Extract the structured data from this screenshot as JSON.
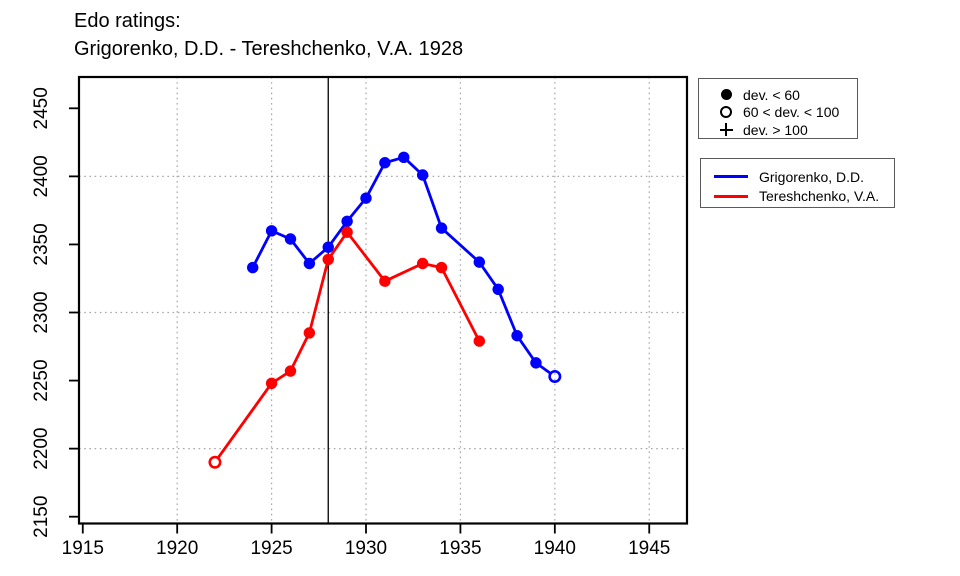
{
  "chart_data": {
    "type": "line",
    "title": "Edo ratings:",
    "subtitle": "Grigorenko, D.D. - Tereshchenko, V.A. 1928",
    "xlabel": "",
    "ylabel": "",
    "xlim": [
      1914.8,
      1947.0
    ],
    "ylim": [
      2145,
      2473
    ],
    "x_ticks": [
      1915,
      1920,
      1925,
      1930,
      1935,
      1940,
      1945
    ],
    "y_ticks": [
      2150,
      2200,
      2250,
      2300,
      2350,
      2400,
      2450
    ],
    "x_gridlines": [
      1920,
      1925,
      1930,
      1935,
      1940,
      1945
    ],
    "y_gridlines": [
      2200,
      2300,
      2400
    ],
    "event_vline_x": 1928,
    "grid": true,
    "legend_position": "top-right-outside",
    "colors": {
      "grid": "#a8a8a8",
      "axis": "#000000",
      "vline": "#000000"
    },
    "series": [
      {
        "name": "Grigorenko, D.D.",
        "color": "#0000ff",
        "points": [
          {
            "x": 1924,
            "y": 2333,
            "marker": "filled"
          },
          {
            "x": 1925,
            "y": 2360,
            "marker": "filled"
          },
          {
            "x": 1926,
            "y": 2354,
            "marker": "filled"
          },
          {
            "x": 1927,
            "y": 2336,
            "marker": "filled"
          },
          {
            "x": 1928,
            "y": 2348,
            "marker": "filled"
          },
          {
            "x": 1929,
            "y": 2367,
            "marker": "filled"
          },
          {
            "x": 1930,
            "y": 2384,
            "marker": "filled"
          },
          {
            "x": 1931,
            "y": 2410,
            "marker": "filled"
          },
          {
            "x": 1932,
            "y": 2414,
            "marker": "filled"
          },
          {
            "x": 1933,
            "y": 2401,
            "marker": "filled"
          },
          {
            "x": 1934,
            "y": 2362,
            "marker": "filled"
          },
          {
            "x": 1936,
            "y": 2337,
            "marker": "filled"
          },
          {
            "x": 1937,
            "y": 2317,
            "marker": "filled"
          },
          {
            "x": 1938,
            "y": 2283,
            "marker": "filled"
          },
          {
            "x": 1939,
            "y": 2263,
            "marker": "filled"
          },
          {
            "x": 1940,
            "y": 2253,
            "marker": "open"
          }
        ]
      },
      {
        "name": "Tereshchenko, V.A.",
        "color": "#ff0000",
        "points": [
          {
            "x": 1922,
            "y": 2190,
            "marker": "open"
          },
          {
            "x": 1925,
            "y": 2248,
            "marker": "filled"
          },
          {
            "x": 1926,
            "y": 2257,
            "marker": "filled"
          },
          {
            "x": 1927,
            "y": 2285,
            "marker": "filled"
          },
          {
            "x": 1928,
            "y": 2339,
            "marker": "filled"
          },
          {
            "x": 1929,
            "y": 2359,
            "marker": "filled"
          },
          {
            "x": 1931,
            "y": 2323,
            "marker": "filled"
          },
          {
            "x": 1933,
            "y": 2336,
            "marker": "filled"
          },
          {
            "x": 1934,
            "y": 2333,
            "marker": "filled"
          },
          {
            "x": 1936,
            "y": 2279,
            "marker": "filled"
          }
        ]
      }
    ]
  },
  "marker_legend": {
    "items": [
      {
        "symbol": "filled-circle",
        "label": "dev. < 60"
      },
      {
        "symbol": "open-circle",
        "label": "60 < dev. < 100"
      },
      {
        "symbol": "plus",
        "label": "dev. > 100"
      }
    ]
  },
  "series_legend": {
    "items": [
      {
        "color": "#0000ff",
        "label": "Grigorenko, D.D."
      },
      {
        "color": "#ff0000",
        "label": "Tereshchenko, V.A."
      }
    ]
  }
}
